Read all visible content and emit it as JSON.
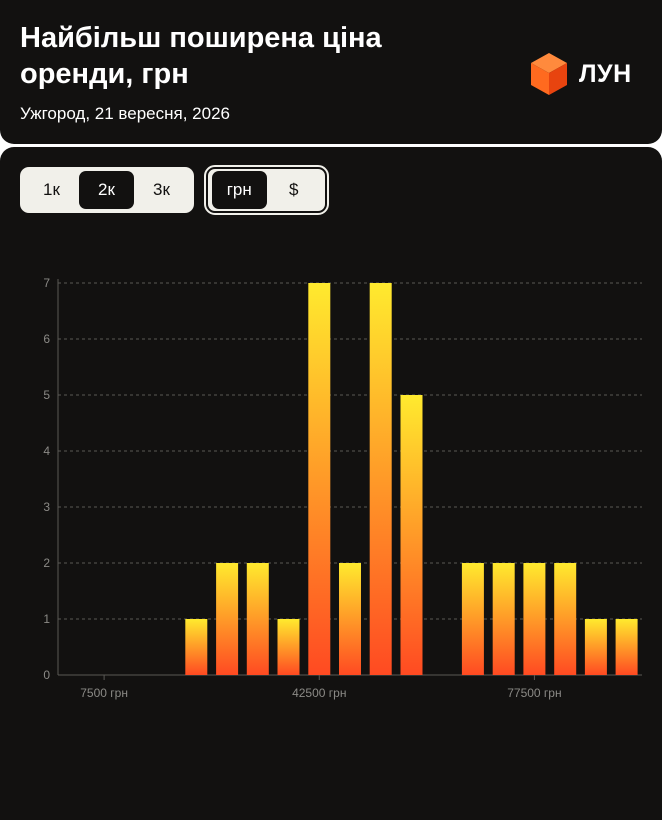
{
  "header": {
    "title": "Найбільш поширена ціна оренди, грн",
    "subtitle": "Ужгород, 21 вересня, 2026",
    "brand": "ЛУН"
  },
  "controls": {
    "range_options": [
      {
        "label": "1к",
        "active": false
      },
      {
        "label": "2к",
        "active": true
      },
      {
        "label": "3к",
        "active": false
      }
    ],
    "currency_options": [
      {
        "label": "грн",
        "active": true
      },
      {
        "label": "$",
        "active": false
      }
    ]
  },
  "colors": {
    "background": "#121110",
    "bar_top": "#ffea2e",
    "bar_bottom": "#ff4a22",
    "grid": "#5a5955",
    "tick_text": "#8b8a86",
    "brand_accent": "#ff5a1f"
  },
  "chart_data": {
    "type": "bar",
    "title": "",
    "xlabel": "",
    "ylabel": "",
    "ylim": [
      0,
      7
    ],
    "yticks": [
      0,
      1,
      2,
      3,
      4,
      5,
      6,
      7
    ],
    "grid": true,
    "x": [
      2500,
      7500,
      12500,
      17500,
      22500,
      27500,
      32500,
      37500,
      42500,
      47500,
      52500,
      57500,
      62500,
      67500,
      72500,
      77500,
      82500,
      87500,
      92500
    ],
    "values": [
      0,
      0,
      0,
      0,
      1,
      2,
      2,
      1,
      7,
      2,
      7,
      5,
      0,
      2,
      2,
      2,
      2,
      1,
      1
    ],
    "xtick_values": [
      7500,
      42500,
      77500
    ],
    "xtick_labels": [
      "7500 грн",
      "42500 грн",
      "77500 грн"
    ]
  }
}
